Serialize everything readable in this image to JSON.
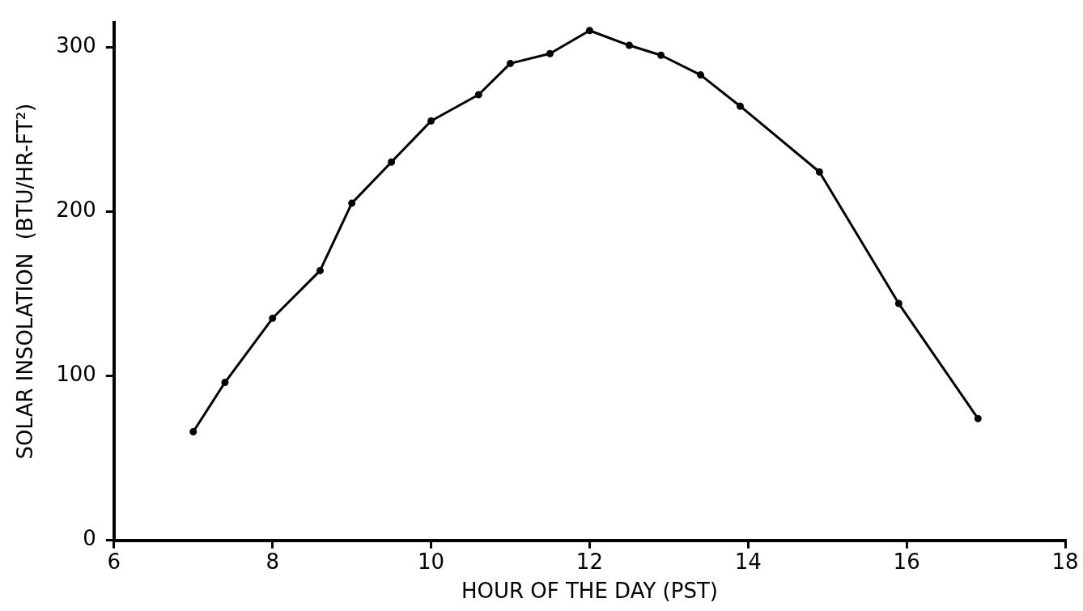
{
  "chart_data": {
    "type": "line",
    "xlabel": "HOUR OF THE DAY (PST)",
    "ylabel": "SOLAR INSOLATION  (BTU/HR-FT²)",
    "x": [
      7.0,
      7.4,
      8.0,
      8.6,
      9.0,
      9.5,
      10.0,
      10.6,
      11.0,
      11.5,
      12.0,
      12.5,
      12.9,
      13.4,
      13.9,
      14.9,
      15.9,
      16.9
    ],
    "series": [
      {
        "color": "#000000",
        "values": [
          66,
          96,
          135,
          164,
          205,
          230,
          255,
          271,
          290,
          296,
          310,
          301,
          295,
          283,
          264,
          224,
          144,
          74
        ]
      }
    ],
    "xlim": [
      6,
      18
    ],
    "xticks": [
      6,
      8,
      10,
      12,
      14,
      16,
      18
    ],
    "ylim": [
      0,
      315
    ],
    "yticks": [
      0,
      100,
      200,
      300
    ],
    "grid": false,
    "legend": false,
    "marker": "circle",
    "line_style": "solid"
  }
}
